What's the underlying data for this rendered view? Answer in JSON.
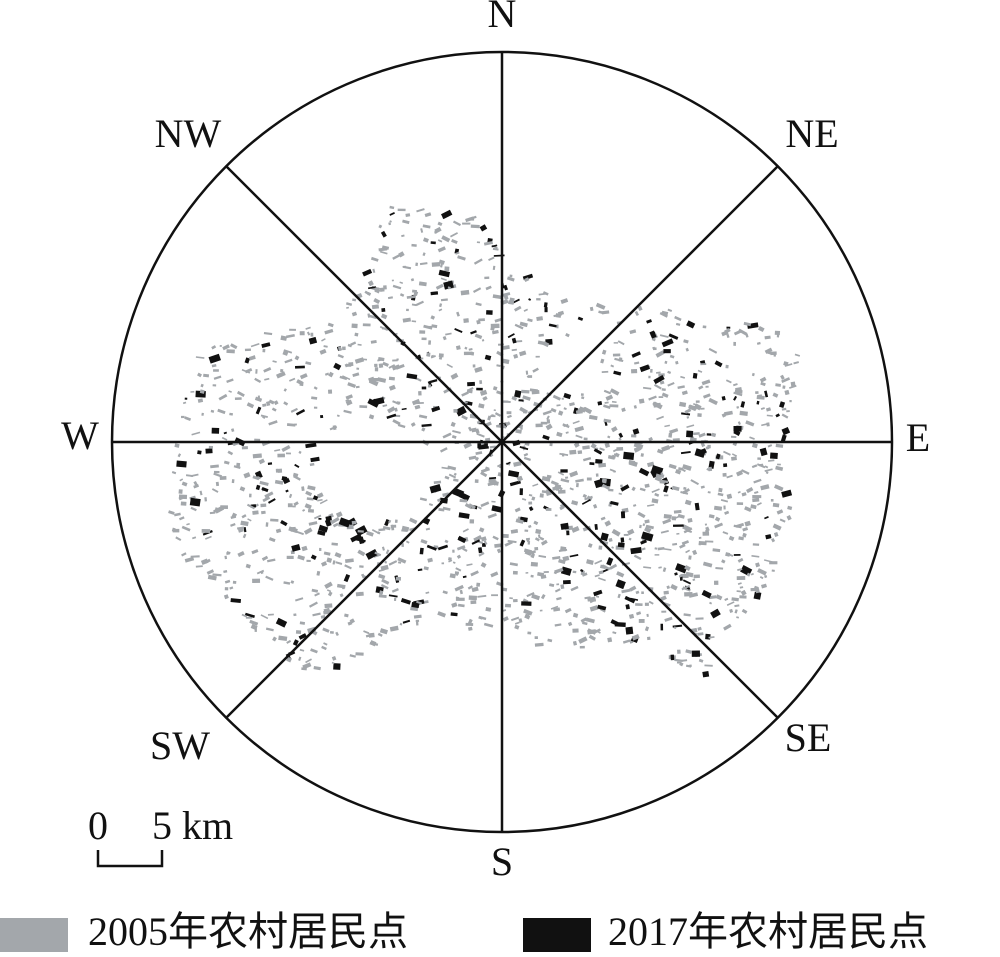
{
  "directions": {
    "n": "N",
    "ne": "NE",
    "e": "E",
    "se": "SE",
    "s": "S",
    "sw": "SW",
    "w": "W",
    "nw": "NW"
  },
  "scale_bar": {
    "start": "0",
    "end": "5 km"
  },
  "legend": [
    {
      "label": "2005年农村居民点",
      "color": "#a3a7ab"
    },
    {
      "label": "2017年农村居民点",
      "color": "#111111"
    }
  ]
}
